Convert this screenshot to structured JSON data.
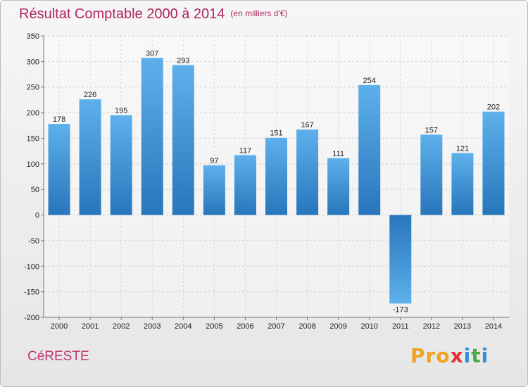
{
  "chart_data": {
    "type": "bar",
    "title": "Résultat Comptable 2000 à 2014",
    "subtitle": "(en milliers d'€)",
    "categories": [
      "2000",
      "2001",
      "2002",
      "2003",
      "2004",
      "2005",
      "2006",
      "2007",
      "2008",
      "2009",
      "2010",
      "2011",
      "2012",
      "2013",
      "2014"
    ],
    "values": [
      178,
      226,
      195,
      307,
      293,
      97,
      117,
      151,
      167,
      111,
      254,
      -173,
      157,
      121,
      202
    ],
    "value_labels": [
      "178",
      "226",
      "195",
      "307",
      "293",
      "97",
      "117",
      "151",
      "167",
      "111",
      "254",
      "-173",
      "157",
      "121",
      "202"
    ],
    "ylim": [
      -200,
      350
    ],
    "yticks": [
      -200,
      -150,
      -100,
      -50,
      0,
      50,
      100,
      150,
      200,
      250,
      300,
      350
    ],
    "xlabel": "",
    "ylabel": "",
    "grid": true,
    "bar_color": "#4a9fe0",
    "bar_color_dark": "#2a78bd"
  },
  "footer": {
    "commune": "CéRESTE",
    "brand_letters": [
      "Pro",
      "x",
      "i",
      "t",
      "i"
    ]
  },
  "colors": {
    "title": "#b0255f",
    "commune": "#c2366f"
  }
}
